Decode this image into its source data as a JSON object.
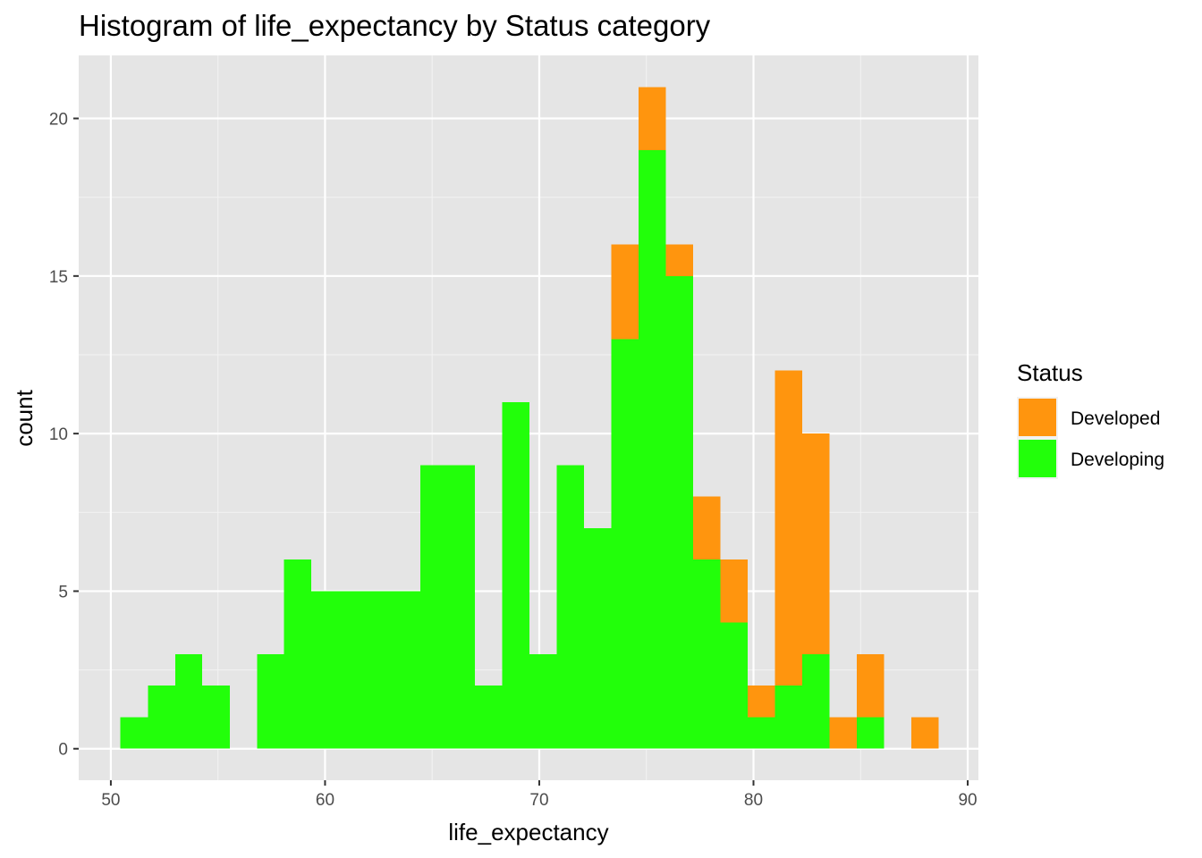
{
  "chart_data": {
    "type": "bar",
    "subtype": "stacked-histogram",
    "title": "Histogram of life_expectancy by Status category",
    "xlabel": "life_expectancy",
    "ylabel": "count",
    "xlim": [
      48.5,
      90.5
    ],
    "ylim": [
      -1,
      22
    ],
    "x_ticks": [
      50,
      60,
      70,
      80,
      90
    ],
    "y_ticks": [
      0,
      5,
      10,
      15,
      20
    ],
    "grid": true,
    "legend": {
      "title": "Status",
      "position": "right",
      "items": [
        {
          "label": "Developed",
          "color": "#FF950E"
        },
        {
          "label": "Developing",
          "color": "#22FF0A"
        }
      ]
    },
    "bins": [
      {
        "start": 50.45,
        "end": 51.73,
        "Developing": 1,
        "Developed": 0
      },
      {
        "start": 51.73,
        "end": 53.0,
        "Developing": 2,
        "Developed": 0
      },
      {
        "start": 53.0,
        "end": 54.27,
        "Developing": 3,
        "Developed": 0
      },
      {
        "start": 54.27,
        "end": 55.55,
        "Developing": 2,
        "Developed": 0
      },
      {
        "start": 55.55,
        "end": 56.82,
        "Developing": 0,
        "Developed": 0
      },
      {
        "start": 56.82,
        "end": 58.09,
        "Developing": 3,
        "Developed": 0
      },
      {
        "start": 58.09,
        "end": 59.36,
        "Developing": 6,
        "Developed": 0
      },
      {
        "start": 59.36,
        "end": 60.64,
        "Developing": 5,
        "Developed": 0
      },
      {
        "start": 60.64,
        "end": 61.91,
        "Developing": 5,
        "Developed": 0
      },
      {
        "start": 61.91,
        "end": 63.18,
        "Developing": 5,
        "Developed": 0
      },
      {
        "start": 63.18,
        "end": 64.45,
        "Developing": 5,
        "Developed": 0
      },
      {
        "start": 64.45,
        "end": 65.73,
        "Developing": 9,
        "Developed": 0
      },
      {
        "start": 65.73,
        "end": 67.0,
        "Developing": 9,
        "Developed": 0
      },
      {
        "start": 67.0,
        "end": 68.27,
        "Developing": 2,
        "Developed": 0
      },
      {
        "start": 68.27,
        "end": 69.55,
        "Developing": 11,
        "Developed": 0
      },
      {
        "start": 69.55,
        "end": 70.82,
        "Developing": 3,
        "Developed": 0
      },
      {
        "start": 70.82,
        "end": 72.09,
        "Developing": 9,
        "Developed": 0
      },
      {
        "start": 72.09,
        "end": 73.36,
        "Developing": 7,
        "Developed": 0
      },
      {
        "start": 73.36,
        "end": 74.64,
        "Developing": 13,
        "Developed": 3
      },
      {
        "start": 74.64,
        "end": 75.91,
        "Developing": 19,
        "Developed": 2
      },
      {
        "start": 75.91,
        "end": 77.18,
        "Developing": 15,
        "Developed": 1
      },
      {
        "start": 77.18,
        "end": 78.45,
        "Developing": 6,
        "Developed": 2
      },
      {
        "start": 78.45,
        "end": 79.73,
        "Developing": 4,
        "Developed": 2
      },
      {
        "start": 79.73,
        "end": 81.0,
        "Developing": 1,
        "Developed": 1
      },
      {
        "start": 81.0,
        "end": 82.27,
        "Developing": 2,
        "Developed": 10
      },
      {
        "start": 82.27,
        "end": 83.55,
        "Developing": 3,
        "Developed": 7
      },
      {
        "start": 83.55,
        "end": 84.82,
        "Developing": 0,
        "Developed": 1
      },
      {
        "start": 84.82,
        "end": 86.09,
        "Developing": 1,
        "Developed": 2
      },
      {
        "start": 86.09,
        "end": 87.36,
        "Developing": 0,
        "Developed": 0
      },
      {
        "start": 87.36,
        "end": 88.64,
        "Developing": 0,
        "Developed": 1
      }
    ]
  }
}
